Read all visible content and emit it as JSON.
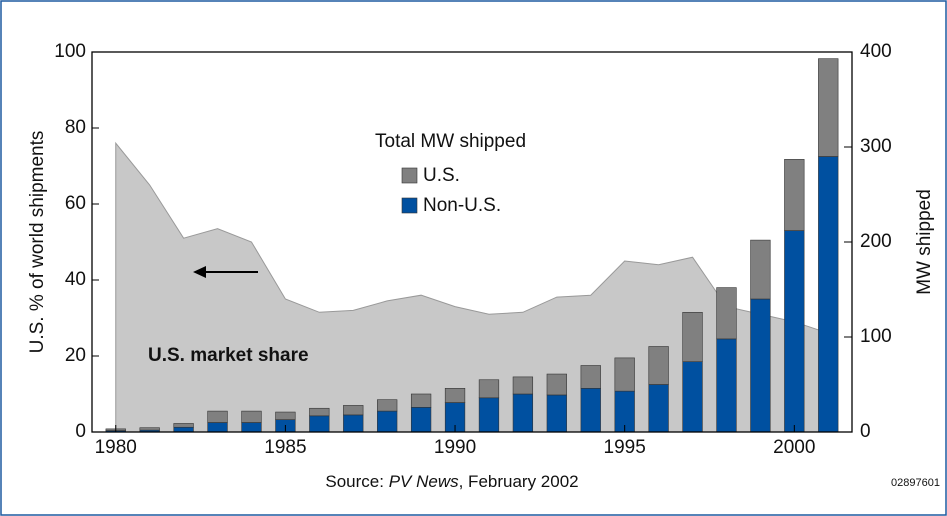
{
  "chart_data": {
    "type": "bar",
    "x": [
      1980,
      1981,
      1982,
      1983,
      1984,
      1985,
      1986,
      1987,
      1988,
      1989,
      1990,
      1991,
      1992,
      1993,
      1994,
      1995,
      1996,
      1997,
      1998,
      1999,
      2000,
      2001
    ],
    "series": [
      {
        "name": "U.S. market share",
        "type": "area",
        "color": "#c8c8c8",
        "values": [
          76,
          65,
          51,
          53.5,
          50,
          35,
          31.5,
          32,
          34.5,
          36,
          33,
          31,
          31.5,
          35.5,
          36,
          45,
          44,
          46,
          33,
          31,
          29,
          26
        ]
      },
      {
        "name": "Non-U.S.",
        "color": "#0050a0",
        "axis": "y2",
        "values": [
          1.5,
          2,
          5,
          10,
          10,
          13,
          17,
          18,
          22,
          26,
          31,
          36,
          40,
          39,
          46,
          43,
          50,
          74,
          98,
          140,
          212,
          290
        ]
      },
      {
        "name": "U.S.",
        "color": "#808080",
        "axis": "y2",
        "values": [
          1.8,
          2.5,
          4,
          12,
          12,
          8,
          8,
          10,
          12,
          14,
          15,
          19,
          18,
          22,
          24,
          35,
          40,
          52,
          54,
          62,
          75,
          103
        ]
      }
    ],
    "legend_title": "Total MW shipped",
    "ylabel": "U.S. % of world shipments",
    "y2label": "MW shipped",
    "source": [
      "Source: ",
      "PV News",
      ", February 2002"
    ],
    "figure_id": "02897601",
    "xlim": [
      1979.3,
      2001.7
    ],
    "xticks": [
      1980,
      1985,
      1990,
      1995,
      2000
    ],
    "ylim": [
      0,
      100
    ],
    "yticks": [
      0,
      20,
      40,
      60,
      80,
      100
    ],
    "y2lim": [
      0,
      400
    ],
    "y2ticks": [
      0,
      100,
      200,
      300,
      400
    ]
  }
}
